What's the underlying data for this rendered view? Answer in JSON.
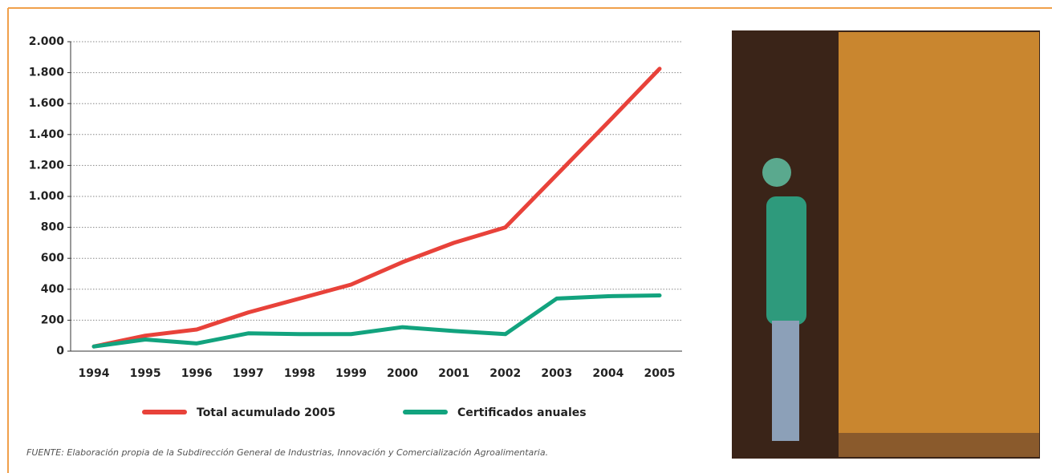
{
  "chart_data": {
    "type": "line",
    "categories": [
      "1994",
      "1995",
      "1996",
      "1997",
      "1998",
      "1999",
      "2000",
      "2001",
      "2002",
      "2003",
      "2004",
      "2005"
    ],
    "series": [
      {
        "name": "Total acumulado 2005",
        "color": "#e8423a",
        "values": [
          30,
          100,
          140,
          250,
          340,
          430,
          575,
          700,
          800,
          1140,
          1480,
          1825
        ]
      },
      {
        "name": "Certificados anuales",
        "color": "#12a37e",
        "values": [
          30,
          75,
          50,
          115,
          110,
          110,
          155,
          130,
          110,
          340,
          355,
          360
        ]
      }
    ],
    "ylim": [
      0,
      2000
    ],
    "yticks": [
      0,
      200,
      400,
      600,
      800,
      {
        "value": 1000,
        "label": "1.000"
      },
      {
        "value": 1200,
        "label": "1.200"
      },
      {
        "value": 1400,
        "label": "1.400"
      },
      {
        "value": 1600,
        "label": "1.600"
      },
      {
        "value": 1800,
        "label": "1.800"
      },
      {
        "value": 2000,
        "label": "2.000"
      }
    ],
    "grid": true,
    "source": "FUENTE: Elaboración propia de la Subdirección General de Industrias, Innovación y Comercialización Agroalimentaria."
  }
}
